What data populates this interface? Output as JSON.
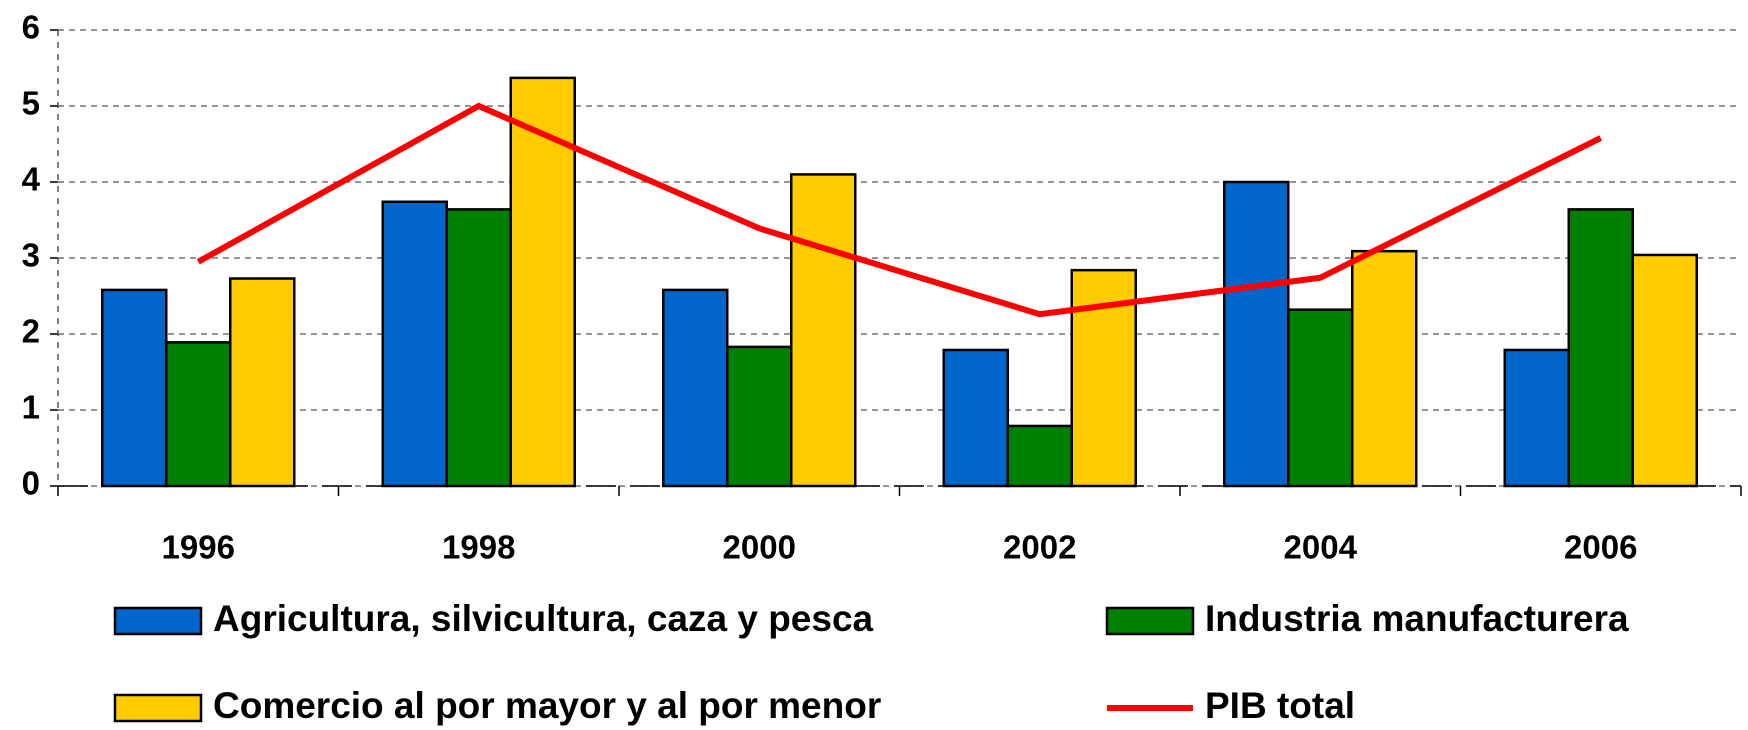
{
  "chart_data": {
    "type": "bar",
    "categories": [
      "1996",
      "1998",
      "2000",
      "2002",
      "2004",
      "2006"
    ],
    "series": [
      {
        "name": "Agricultura, silvicultura, caza y pesca",
        "color": "#0066cc",
        "values": [
          2.58,
          3.74,
          2.58,
          1.79,
          4.0,
          1.79
        ]
      },
      {
        "name": "Industria manufacturera",
        "color": "#008000",
        "values": [
          1.89,
          3.64,
          1.83,
          0.79,
          2.32,
          3.64
        ]
      },
      {
        "name": "Comercio al por mayor y al por menor",
        "color": "#ffcc00",
        "values": [
          2.73,
          5.37,
          4.1,
          2.84,
          3.09,
          3.04
        ]
      },
      {
        "name": "PIB total",
        "color": "#ff0000",
        "type": "line",
        "values": [
          2.95,
          5.0,
          3.39,
          2.26,
          2.74,
          4.58
        ]
      }
    ],
    "ylim": [
      0,
      6
    ],
    "yticks": [
      0,
      1,
      2,
      3,
      4,
      5,
      6
    ],
    "grid": true
  }
}
